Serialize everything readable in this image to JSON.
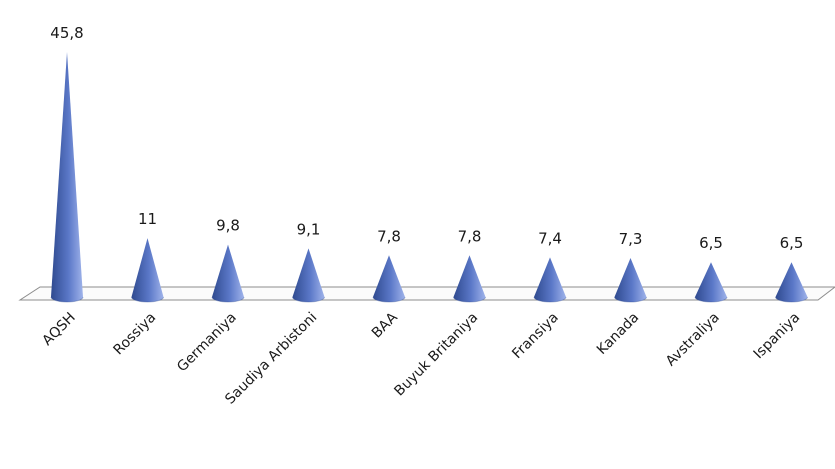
{
  "chart_data": {
    "type": "bar",
    "style": "3d-cone",
    "categories": [
      "AQSH",
      "Rossiya",
      "Germaniya",
      "Saudiya Arbistoni",
      "BAA",
      "Buyuk Britaniya",
      "Fransiya",
      "Kanada",
      "Avstraliya",
      "Ispaniya"
    ],
    "values": [
      45.8,
      11,
      9.8,
      9.1,
      7.8,
      7.8,
      7.4,
      7.3,
      6.5,
      6.5
    ],
    "value_labels": [
      "45,8",
      "11",
      "9,8",
      "9,1",
      "7,8",
      "7,8",
      "7,4",
      "7,3",
      "6,5",
      "6,5"
    ],
    "title": "",
    "xlabel": "",
    "ylabel": "",
    "ylim": [
      0,
      46
    ],
    "grid": false,
    "legend": "none",
    "colors": {
      "cone_dark": "#2f4a8f",
      "cone_mid": "#5b78c8",
      "cone_light": "#9fb3ea",
      "floor_stroke": "#8c8c8c",
      "floor_fill": "#fbfbfb"
    }
  }
}
